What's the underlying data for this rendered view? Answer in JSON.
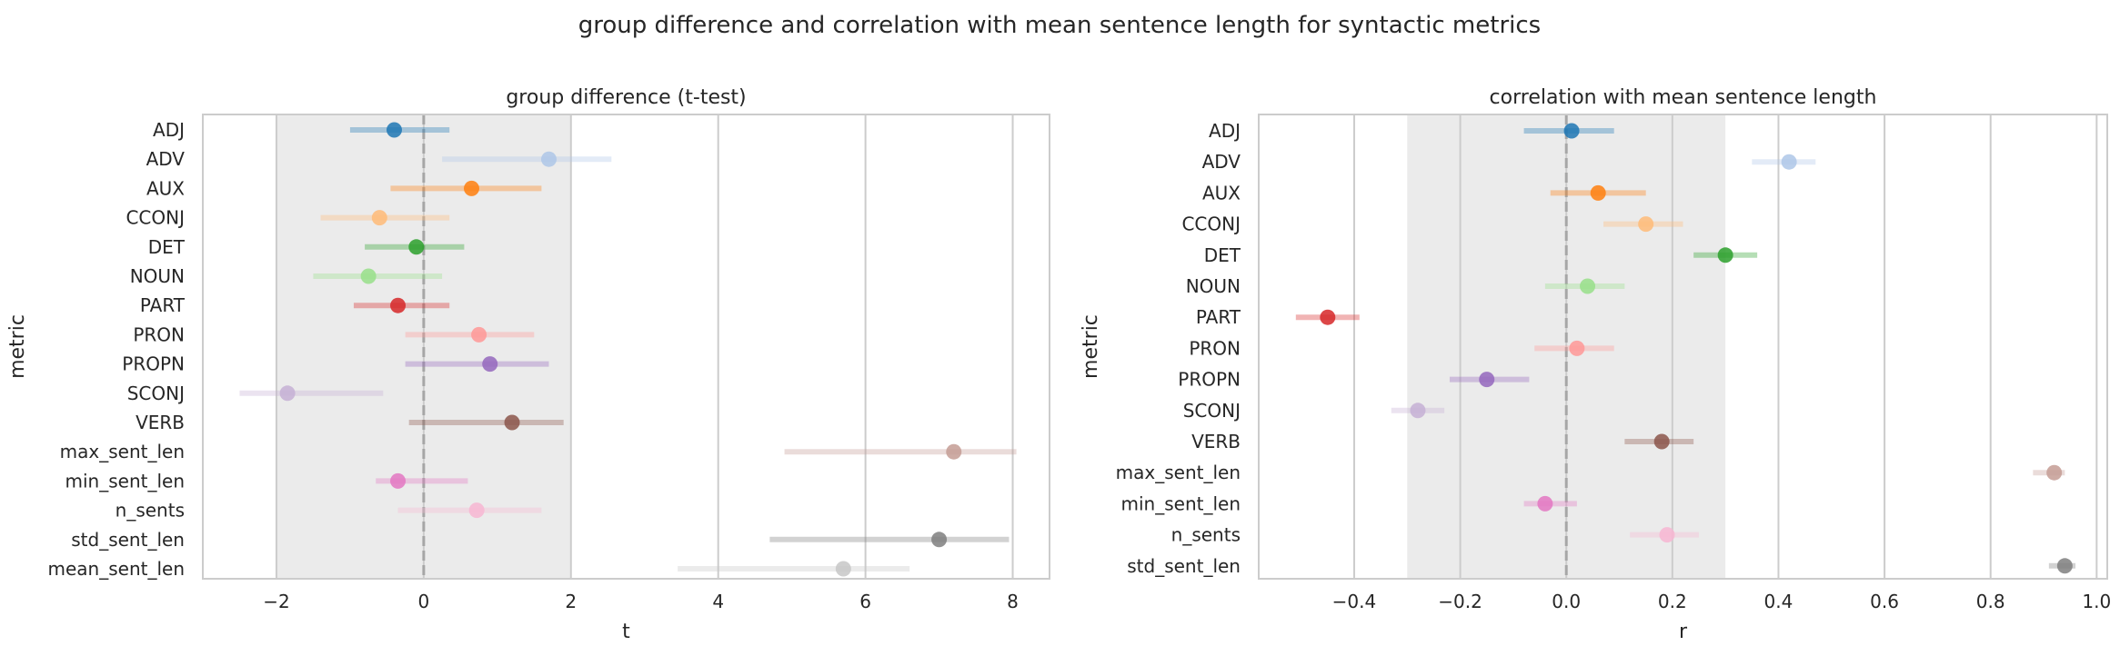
{
  "figure": {
    "suptitle": "group difference and correlation with mean sentence length for syntactic metrics"
  },
  "chart_data": [
    {
      "type": "scatter",
      "subtype": "point-range",
      "title": "group difference (t-test)",
      "xlabel": "t",
      "ylabel": "metric",
      "xlim": [
        -3.0,
        8.5
      ],
      "xticks": [
        -2,
        0,
        2,
        4,
        6,
        8
      ],
      "xtick_labels": [
        "−2",
        "0",
        "2",
        "4",
        "6",
        "8"
      ],
      "shaded_region": [
        -2,
        2
      ],
      "reference_line": 0,
      "grid": "x",
      "categories": [
        "ADJ",
        "ADV",
        "AUX",
        "CCONJ",
        "DET",
        "NOUN",
        "PART",
        "PRON",
        "PROPN",
        "SCONJ",
        "VERB",
        "max_sent_len",
        "min_sent_len",
        "n_sents",
        "std_sent_len",
        "mean_sent_len"
      ],
      "values": [
        -0.4,
        1.7,
        0.65,
        -0.6,
        -0.1,
        -0.75,
        -0.35,
        0.75,
        0.9,
        -1.85,
        1.2,
        7.2,
        -0.35,
        0.72,
        7.0,
        5.7
      ],
      "ci_low": [
        -1.0,
        0.25,
        -0.45,
        -1.4,
        -0.8,
        -1.5,
        -0.95,
        -0.25,
        -0.25,
        -2.5,
        -0.2,
        4.9,
        -0.65,
        -0.35,
        4.7,
        3.45
      ],
      "ci_high": [
        0.35,
        2.55,
        1.6,
        0.35,
        0.55,
        0.25,
        0.35,
        1.5,
        1.7,
        -0.55,
        1.9,
        8.05,
        0.6,
        1.6,
        7.95,
        6.6
      ]
    },
    {
      "type": "scatter",
      "subtype": "point-range",
      "title": "correlation with mean sentence length",
      "xlabel": "r",
      "ylabel": "metric",
      "xlim": [
        -0.58,
        1.02
      ],
      "xticks": [
        -0.4,
        -0.2,
        0.0,
        0.2,
        0.4,
        0.6,
        0.8,
        1.0
      ],
      "xtick_labels": [
        "−0.4",
        "−0.2",
        "0.0",
        "0.2",
        "0.4",
        "0.6",
        "0.8",
        "1.0"
      ],
      "shaded_region": [
        -0.3,
        0.3
      ],
      "reference_line": 0,
      "grid": "x",
      "categories": [
        "ADJ",
        "ADV",
        "AUX",
        "CCONJ",
        "DET",
        "NOUN",
        "PART",
        "PRON",
        "PROPN",
        "SCONJ",
        "VERB",
        "max_sent_len",
        "min_sent_len",
        "n_sents",
        "std_sent_len"
      ],
      "values": [
        0.01,
        0.42,
        0.06,
        0.15,
        0.3,
        0.04,
        -0.45,
        0.02,
        -0.15,
        -0.28,
        0.18,
        0.92,
        -0.04,
        0.19,
        0.94
      ],
      "ci_low": [
        -0.08,
        0.35,
        -0.03,
        0.07,
        0.24,
        -0.04,
        -0.51,
        -0.06,
        -0.22,
        -0.33,
        0.11,
        0.88,
        -0.08,
        0.12,
        0.91
      ],
      "ci_high": [
        0.09,
        0.47,
        0.15,
        0.22,
        0.36,
        0.11,
        -0.39,
        0.09,
        -0.07,
        -0.23,
        0.24,
        0.94,
        0.02,
        0.25,
        0.96
      ]
    }
  ],
  "palette": [
    "#1f77b4",
    "#aec7e8",
    "#ff7f0e",
    "#ffbb78",
    "#2ca02c",
    "#98df8a",
    "#d62728",
    "#ff9896",
    "#9467bd",
    "#c5b0d5",
    "#8c564b",
    "#c49c94",
    "#e377c2",
    "#f7b6d2",
    "#7f7f7f",
    "#c7c7c7"
  ],
  "colors": {
    "shade": "#ebebeb",
    "grid": "#cccccc",
    "spine": "#cccccc",
    "reference": "#a6a6a6",
    "text": "#262626"
  }
}
